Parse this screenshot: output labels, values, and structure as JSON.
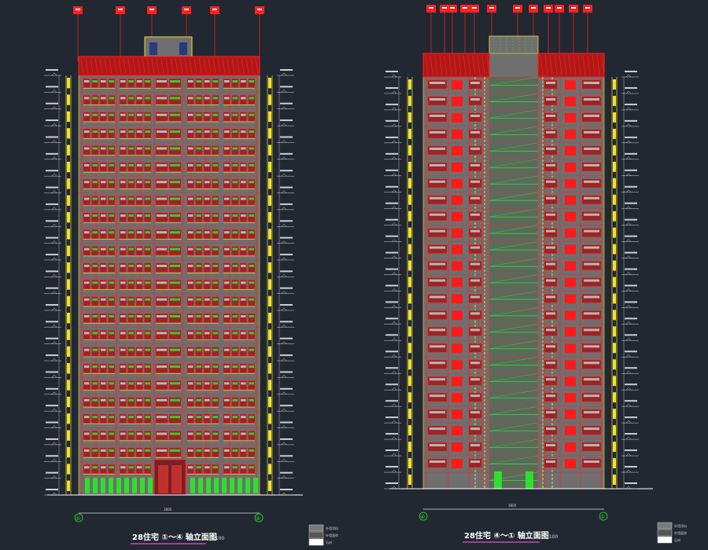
{
  "colors": {
    "background": "#222831",
    "wall": "#6f6f6f",
    "frame": "#ff2020",
    "window": "#9c2424",
    "window_alt": "#2fd12f",
    "glass": "#b8b8b8",
    "railing": "#f0e030",
    "balcony_green": "#2ee02e",
    "dim_line": "#d8d8d8",
    "axis_green": "#2ee02e",
    "title_magenta": "#d040d0"
  },
  "elevations": [
    {
      "id": "front",
      "floors": 25,
      "title": "28住宅 ①～④ 轴立面图",
      "scale": "1:100",
      "axis_left": "①",
      "axis_right": "④",
      "total_width": "3800"
    },
    {
      "id": "back",
      "floors": 25,
      "title": "28住宅 ④～① 轴立面图",
      "scale": "1:100",
      "axis_left": "④",
      "axis_right": "①",
      "total_width": "3800"
    }
  ],
  "legends": [
    {
      "id": "legend-front",
      "items": [
        "外墙涂料",
        "外墙面砖",
        "石材"
      ]
    },
    {
      "id": "legend-back",
      "items": [
        "外墙涂料",
        "外墙面砖",
        "石材"
      ]
    }
  ]
}
